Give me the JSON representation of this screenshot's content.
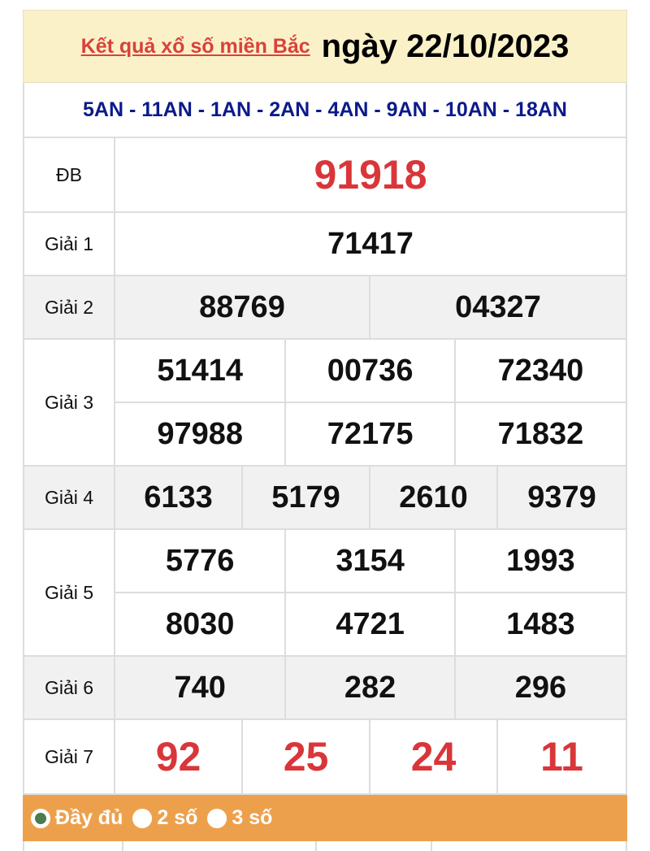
{
  "header": {
    "title_link": "Kết quả xổ số miền Bắc",
    "date": "ngày 22/10/2023"
  },
  "codes": "5AN - 11AN - 1AN - 2AN - 4AN - 9AN - 10AN - 18AN",
  "prizes": {
    "db": {
      "label": "ĐB",
      "numbers": [
        "91918"
      ]
    },
    "g1": {
      "label": "Giải 1",
      "numbers": [
        "71417"
      ]
    },
    "g2": {
      "label": "Giải 2",
      "numbers": [
        "88769",
        "04327"
      ]
    },
    "g3": {
      "label": "Giải 3",
      "numbers": [
        "51414",
        "00736",
        "72340",
        "97988",
        "72175",
        "71832"
      ]
    },
    "g4": {
      "label": "Giải 4",
      "numbers": [
        "6133",
        "5179",
        "2610",
        "9379"
      ]
    },
    "g5": {
      "label": "Giải 5",
      "numbers": [
        "5776",
        "3154",
        "1993",
        "8030",
        "4721",
        "1483"
      ]
    },
    "g6": {
      "label": "Giải 6",
      "numbers": [
        "740",
        "282",
        "296"
      ]
    },
    "g7": {
      "label": "Giải 7",
      "numbers": [
        "92",
        "25",
        "24",
        "11"
      ]
    }
  },
  "options": {
    "items": [
      "Đầy đủ",
      "2 số",
      "3 số"
    ],
    "selected": "Đầy đủ"
  },
  "colors": {
    "accent_red": "#d9363a",
    "codes_blue": "#0b1a8a",
    "header_bg": "#faf1c9",
    "options_bg": "#eda04c"
  }
}
